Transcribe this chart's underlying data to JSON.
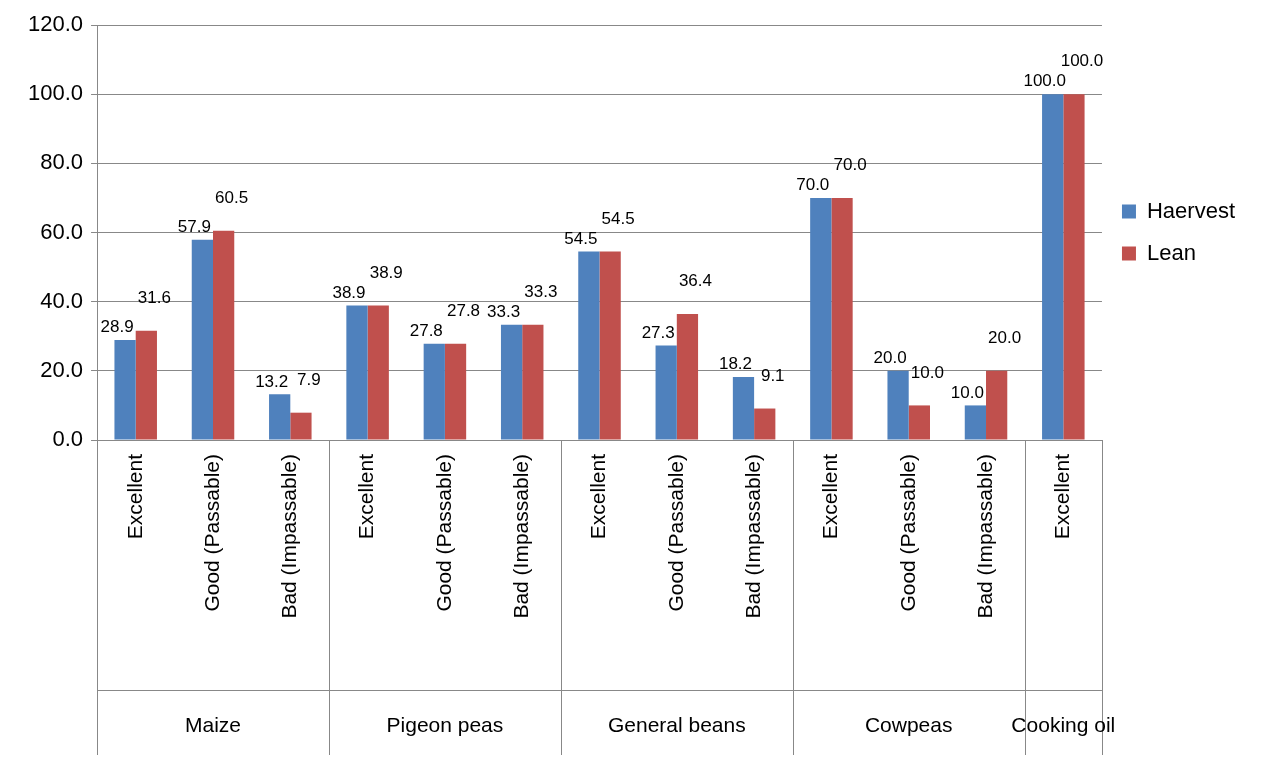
{
  "chart_data": {
    "type": "bar",
    "categories": [
      "Excellent",
      "Good (Passable)",
      "Bad (Impassable)",
      "Excellent",
      "Good (Passable)",
      "Bad (Impassable)",
      "Excellent",
      "Good (Passable)",
      "Bad (Impassable)",
      "Excellent",
      "Good (Passable)",
      "Bad (Impassable)",
      "Excellent"
    ],
    "series": [
      {
        "name": "Haervest",
        "color": "#4f81bd",
        "values": [
          28.9,
          57.9,
          13.2,
          38.9,
          27.8,
          33.3,
          54.5,
          27.3,
          18.2,
          70.0,
          20.0,
          10.0,
          100.0
        ],
        "value_labels": [
          "28.9",
          "57.9",
          "13.2",
          "38.9",
          "27.8",
          "33.3",
          "54.5",
          "27.3",
          "18.2",
          "70.0",
          "20.0",
          "10.0",
          "100.0"
        ]
      },
      {
        "name": "Lean",
        "color": "#c0504d",
        "values": [
          31.6,
          60.5,
          7.9,
          38.9,
          27.8,
          33.3,
          54.5,
          36.4,
          9.1,
          70.0,
          10.0,
          20.0,
          100.0
        ],
        "value_labels": [
          "31.6",
          "60.5",
          "7.9",
          "38.9",
          "27.8",
          "33.3",
          "54.5",
          "36.4",
          "9.1",
          "70.0",
          "10.0",
          "20.0",
          "100.0"
        ]
      }
    ],
    "annotations": [
      "Maize",
      "Pigeon peas",
      "General beans",
      "Cowpeas",
      "Cooking oil"
    ],
    "ylim": [
      0,
      120
    ],
    "yticks": [
      {
        "value": 0,
        "label": "0.0"
      },
      {
        "value": 20,
        "label": "20.0"
      },
      {
        "value": 40,
        "label": "40.0"
      },
      {
        "value": 60,
        "label": "60.0"
      },
      {
        "value": 80,
        "label": "80.0"
      },
      {
        "value": 100,
        "label": "100.0"
      },
      {
        "value": 120,
        "label": "120.0"
      }
    ],
    "grid": "y",
    "legend": "right"
  }
}
